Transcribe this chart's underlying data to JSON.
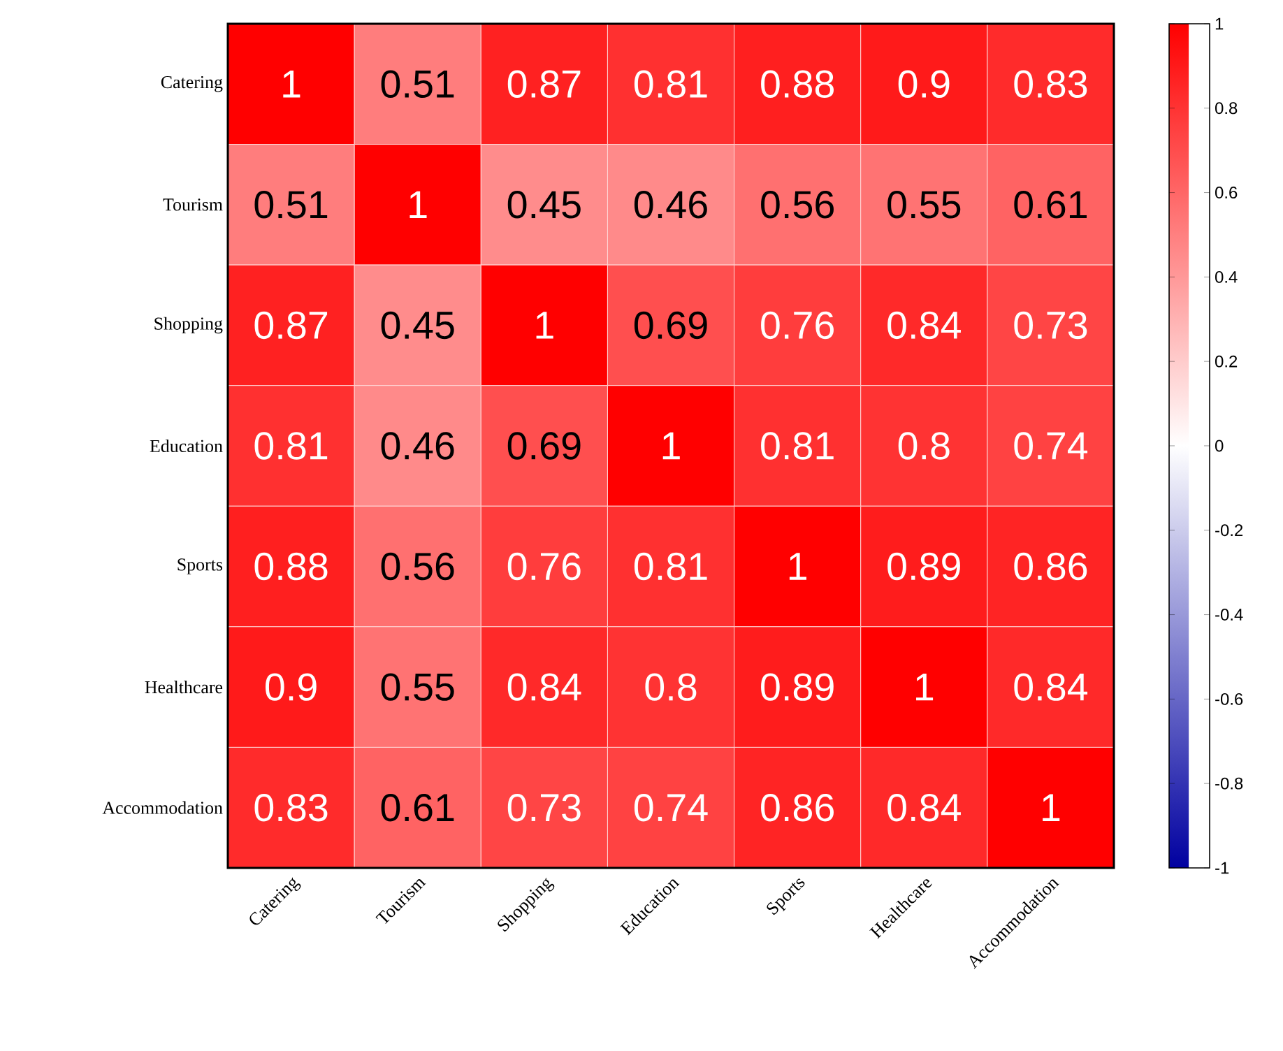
{
  "chart_data": {
    "type": "heatmap",
    "categories": [
      "Catering",
      "Tourism",
      "Shopping",
      "Education",
      "Sports",
      "Healthcare",
      "Accommodation"
    ],
    "y_categories": [
      "Catering",
      "Tourism",
      "Shopping",
      "Education",
      "Sports",
      "Healthcare",
      "Accommodation"
    ],
    "cells": [
      [
        1,
        0.51,
        0.87,
        0.81,
        0.88,
        0.9,
        0.83
      ],
      [
        0.51,
        1,
        0.45,
        0.46,
        0.56,
        0.55,
        0.61
      ],
      [
        0.87,
        0.45,
        1,
        0.69,
        0.76,
        0.84,
        0.73
      ],
      [
        0.81,
        0.46,
        0.69,
        1,
        0.81,
        0.8,
        0.74
      ],
      [
        0.88,
        0.56,
        0.76,
        0.81,
        1,
        0.89,
        0.86
      ],
      [
        0.9,
        0.55,
        0.84,
        0.8,
        0.89,
        1,
        0.84
      ],
      [
        0.83,
        0.61,
        0.73,
        0.74,
        0.86,
        0.84,
        1
      ]
    ],
    "clim": [
      -1,
      1
    ],
    "cticks": [
      -1,
      -0.8,
      -0.6,
      -0.4,
      -0.2,
      0,
      0.2,
      0.4,
      0.6,
      0.8,
      1
    ],
    "data_labels": true
  }
}
